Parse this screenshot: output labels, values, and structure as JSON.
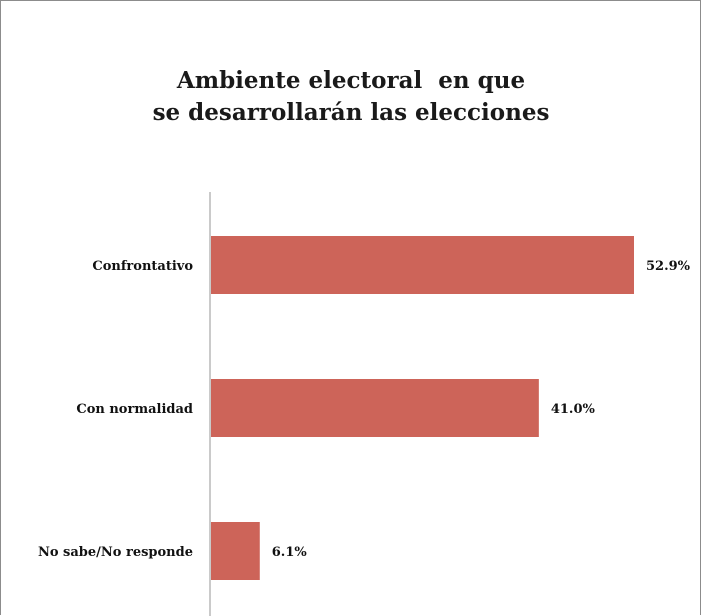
{
  "chart_data": {
    "type": "bar",
    "orientation": "horizontal",
    "title": [
      "Ambiente electoral  en que",
      "se desarrollarán las elecciones"
    ],
    "categories": [
      "Confrontativo",
      "Con normalidad",
      "No sabe/No responde"
    ],
    "values": [
      52.9,
      41.0,
      6.1
    ],
    "value_labels": [
      "52.9%",
      "41.0%",
      "6.1%"
    ],
    "xlim": [
      0,
      55
    ],
    "bar_color": "#cd6459",
    "axis_color": "#a6a6a6",
    "grid": false,
    "legend": "none"
  }
}
